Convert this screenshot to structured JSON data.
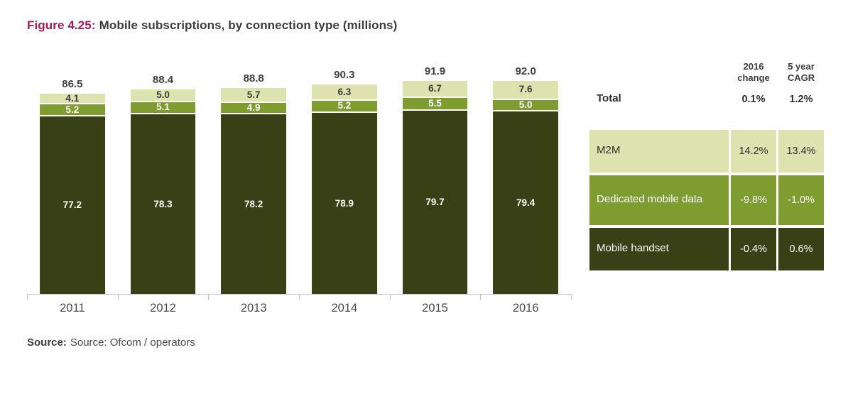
{
  "figure": {
    "label": "Figure 4.25:",
    "title": "Mobile subscriptions, by connection type (millions)"
  },
  "colors": {
    "accent": "#a21a5b",
    "m2m": "#dce3ae",
    "dedicated_mobile_data": "#7e9c2f",
    "mobile_handset": "#3a4015"
  },
  "chart_data": {
    "type": "bar",
    "stacked": true,
    "title": "Mobile subscriptions, by connection type (millions)",
    "categories": [
      "2011",
      "2012",
      "2013",
      "2014",
      "2015",
      "2016"
    ],
    "series": [
      {
        "name": "M2M",
        "values": [
          4.1,
          5.0,
          5.7,
          6.3,
          6.7,
          7.6
        ]
      },
      {
        "name": "Dedicated mobile data",
        "values": [
          5.2,
          5.1,
          4.9,
          5.2,
          5.5,
          5.0
        ]
      },
      {
        "name": "Mobile handset",
        "values": [
          77.2,
          78.3,
          78.2,
          78.9,
          79.7,
          79.4
        ]
      }
    ],
    "totals": [
      86.5,
      88.4,
      88.8,
      90.3,
      91.9,
      92.0
    ],
    "xlabel": "",
    "ylabel": "",
    "ylim": [
      0,
      95
    ],
    "grid": false,
    "legend_position": "right-table"
  },
  "table": {
    "col_headers": [
      "2016\nchange",
      "5 year\nCAGR"
    ],
    "rows": [
      {
        "label": "Total",
        "change": "0.1%",
        "cagr": "1.2%",
        "style": "plain"
      },
      {
        "label": "M2M",
        "change": "14.2%",
        "cagr": "13.4%",
        "style": "m2m"
      },
      {
        "label": "Dedicated mobile data",
        "change": "-9.8%",
        "cagr": "-1.0%",
        "style": "dedicated"
      },
      {
        "label": "Mobile handset",
        "change": "-0.4%",
        "cagr": "0.6%",
        "style": "handset"
      }
    ]
  },
  "source": {
    "label": "Source:",
    "text": "Source: Ofcom / operators"
  }
}
